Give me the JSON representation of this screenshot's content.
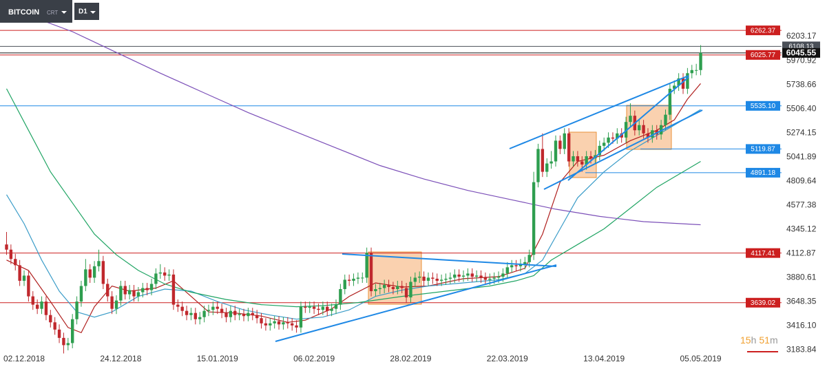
{
  "chart_data": {
    "type": "candlestick",
    "instrument": "BITCOIN",
    "instrument_kind": "CRT",
    "timeframe": "D1",
    "countdown": [
      "15",
      "h",
      "51",
      "m"
    ],
    "up_color": "#2e9e4f",
    "down_color": "#c0282d",
    "ylim": [
      3160,
      6555
    ],
    "yticks": [
      6203.17,
      5970.92,
      5738.66,
      {
        "value": 5506.4,
        "label": "5506.40"
      },
      5274.15,
      5041.89,
      4809.64,
      4577.38,
      4345.12,
      4112.87,
      3880.61,
      3648.35,
      {
        "value": 3416.1,
        "label": "3416.10"
      },
      3183.84
    ],
    "categories": [
      null,
      null,
      null,
      null,
      "02.12.2018",
      null,
      null,
      null,
      null,
      null,
      null,
      null,
      null,
      null,
      null,
      null,
      null,
      null,
      null,
      null,
      null,
      null,
      null,
      null,
      null,
      null,
      "24.12.2018",
      null,
      null,
      null,
      null,
      null,
      null,
      null,
      null,
      null,
      null,
      null,
      null,
      null,
      null,
      null,
      null,
      null,
      null,
      null,
      null,
      null,
      "15.01.2019",
      null,
      null,
      null,
      null,
      null,
      null,
      null,
      null,
      null,
      null,
      null,
      null,
      null,
      null,
      null,
      null,
      null,
      null,
      null,
      null,
      null,
      "06.02.2019",
      null,
      null,
      null,
      null,
      null,
      null,
      null,
      null,
      null,
      null,
      null,
      null,
      null,
      null,
      null,
      null,
      null,
      null,
      null,
      null,
      null,
      "28.02.2019",
      null,
      null,
      null,
      null,
      null,
      null,
      null,
      null,
      null,
      null,
      null,
      null,
      null,
      null,
      null,
      null,
      null,
      null,
      null,
      null,
      null,
      "22.03.2019",
      null,
      null,
      null,
      null,
      null,
      null,
      null,
      null,
      null,
      null,
      null,
      null,
      null,
      null,
      null,
      null,
      null,
      null,
      null,
      null,
      null,
      "13.04.2019",
      null,
      null,
      null,
      null,
      null,
      null,
      null,
      null,
      null,
      null,
      null,
      null,
      null,
      null,
      null,
      null,
      null,
      null,
      null,
      null,
      null,
      "05.05.2019"
    ],
    "candles": [
      [
        4200,
        4320,
        4100,
        4150
      ],
      [
        4150,
        4200,
        4010,
        4060
      ],
      [
        4060,
        4110,
        3950,
        4000
      ],
      [
        4000,
        4050,
        3800,
        3850
      ],
      [
        3850,
        3950,
        3800,
        3900
      ],
      [
        3900,
        3950,
        3650,
        3700
      ],
      [
        3700,
        3750,
        3570,
        3620
      ],
      [
        3620,
        3670,
        3530,
        3580
      ],
      [
        3580,
        3700,
        3530,
        3650
      ],
      [
        3650,
        3700,
        3470,
        3520
      ],
      [
        3520,
        3570,
        3400,
        3450
      ],
      [
        3450,
        3500,
        3330,
        3380
      ],
      [
        3380,
        3430,
        3250,
        3300
      ],
      [
        3300,
        3350,
        3150,
        3230
      ],
      [
        3230,
        3300,
        3180,
        3250
      ],
      [
        3250,
        3530,
        3200,
        3480
      ],
      [
        3480,
        3700,
        3430,
        3650
      ],
      [
        3650,
        3850,
        3600,
        3800
      ],
      [
        3800,
        4060,
        3750,
        3960
      ],
      [
        3960,
        4010,
        3830,
        3880
      ],
      [
        3880,
        4040,
        3830,
        3990
      ],
      [
        3990,
        4150,
        3940,
        4040
      ],
      [
        4040,
        4090,
        3770,
        3820
      ],
      [
        3820,
        3870,
        3650,
        3700
      ],
      [
        3700,
        3750,
        3530,
        3580
      ],
      [
        3580,
        3710,
        3530,
        3660
      ],
      [
        3660,
        3850,
        3610,
        3800
      ],
      [
        3800,
        3850,
        3670,
        3720
      ],
      [
        3720,
        3810,
        3670,
        3760
      ],
      [
        3760,
        3810,
        3650,
        3700
      ],
      [
        3700,
        3790,
        3650,
        3740
      ],
      [
        3740,
        3830,
        3690,
        3780
      ],
      [
        3780,
        3830,
        3710,
        3760
      ],
      [
        3760,
        3870,
        3710,
        3820
      ],
      [
        3820,
        3970,
        3770,
        3920
      ],
      [
        3920,
        4010,
        3870,
        3930
      ],
      [
        3930,
        3980,
        3850,
        3900
      ],
      [
        3900,
        3960,
        3850,
        3910
      ],
      [
        3910,
        3960,
        3570,
        3620
      ],
      [
        3620,
        3670,
        3550,
        3600
      ],
      [
        3600,
        3650,
        3510,
        3560
      ],
      [
        3560,
        3610,
        3470,
        3520
      ],
      [
        3520,
        3590,
        3470,
        3540
      ],
      [
        3540,
        3590,
        3430,
        3480
      ],
      [
        3480,
        3550,
        3430,
        3500
      ],
      [
        3500,
        3610,
        3450,
        3560
      ],
      [
        3560,
        3620,
        3510,
        3570
      ],
      [
        3570,
        3650,
        3520,
        3600
      ],
      [
        3600,
        3650,
        3530,
        3580
      ],
      [
        3580,
        3630,
        3490,
        3540
      ],
      [
        3540,
        3590,
        3450,
        3500
      ],
      [
        3500,
        3610,
        3450,
        3560
      ],
      [
        3560,
        3610,
        3470,
        3520
      ],
      [
        3520,
        3580,
        3470,
        3530
      ],
      [
        3530,
        3580,
        3460,
        3510
      ],
      [
        3510,
        3590,
        3460,
        3540
      ],
      [
        3540,
        3590,
        3470,
        3520
      ],
      [
        3520,
        3570,
        3440,
        3490
      ],
      [
        3490,
        3540,
        3390,
        3440
      ],
      [
        3440,
        3490,
        3370,
        3420
      ],
      [
        3420,
        3490,
        3370,
        3440
      ],
      [
        3440,
        3510,
        3390,
        3460
      ],
      [
        3460,
        3510,
        3380,
        3430
      ],
      [
        3430,
        3500,
        3380,
        3450
      ],
      [
        3450,
        3500,
        3390,
        3440
      ],
      [
        3440,
        3490,
        3370,
        3420
      ],
      [
        3420,
        3470,
        3350,
        3400
      ],
      [
        3400,
        3650,
        3350,
        3600
      ],
      [
        3600,
        3650,
        3540,
        3590
      ],
      [
        3590,
        3650,
        3540,
        3600
      ],
      [
        3600,
        3650,
        3530,
        3580
      ],
      [
        3580,
        3630,
        3520,
        3570
      ],
      [
        3570,
        3650,
        3520,
        3600
      ],
      [
        3600,
        3650,
        3510,
        3560
      ],
      [
        3560,
        3630,
        3510,
        3580
      ],
      [
        3580,
        3670,
        3530,
        3620
      ],
      [
        3620,
        3820,
        3570,
        3770
      ],
      [
        3770,
        3910,
        3720,
        3860
      ],
      [
        3860,
        3910,
        3800,
        3850
      ],
      [
        3850,
        3920,
        3800,
        3870
      ],
      [
        3870,
        3930,
        3820,
        3880
      ],
      [
        3880,
        3930,
        3830,
        3880
      ],
      [
        3880,
        4170,
        3830,
        4120
      ],
      [
        4120,
        4170,
        3700,
        3750
      ],
      [
        3750,
        3820,
        3700,
        3770
      ],
      [
        3770,
        3830,
        3720,
        3780
      ],
      [
        3780,
        3860,
        3730,
        3810
      ],
      [
        3810,
        3860,
        3740,
        3790
      ],
      [
        3790,
        3840,
        3720,
        3770
      ],
      [
        3770,
        3850,
        3720,
        3800
      ],
      [
        3800,
        3850,
        3730,
        3780
      ],
      [
        3780,
        3830,
        3640,
        3690
      ],
      [
        3690,
        3890,
        3640,
        3840
      ],
      [
        3840,
        3930,
        3790,
        3880
      ],
      [
        3880,
        3940,
        3830,
        3890
      ],
      [
        3890,
        3940,
        3800,
        3850
      ],
      [
        3850,
        3930,
        3800,
        3880
      ],
      [
        3880,
        3930,
        3820,
        3870
      ],
      [
        3870,
        3920,
        3800,
        3850
      ],
      [
        3850,
        3910,
        3800,
        3860
      ],
      [
        3860,
        3920,
        3810,
        3870
      ],
      [
        3870,
        3930,
        3820,
        3880
      ],
      [
        3880,
        3960,
        3830,
        3910
      ],
      [
        3910,
        3960,
        3840,
        3890
      ],
      [
        3890,
        3950,
        3840,
        3900
      ],
      [
        3900,
        3970,
        3850,
        3920
      ],
      [
        3920,
        3970,
        3840,
        3890
      ],
      [
        3890,
        3950,
        3840,
        3900
      ],
      [
        3900,
        3950,
        3830,
        3880
      ],
      [
        3880,
        3930,
        3810,
        3860
      ],
      [
        3860,
        3920,
        3810,
        3870
      ],
      [
        3870,
        3930,
        3820,
        3880
      ],
      [
        3880,
        3940,
        3830,
        3890
      ],
      [
        3890,
        3970,
        3840,
        3920
      ],
      [
        3920,
        4030,
        3870,
        3980
      ],
      [
        3980,
        4050,
        3930,
        4000
      ],
      [
        4000,
        4050,
        3940,
        3990
      ],
      [
        3990,
        4060,
        3940,
        4010
      ],
      [
        4010,
        4080,
        3960,
        4030
      ],
      [
        4030,
        4150,
        3980,
        4100
      ],
      [
        4100,
        4900,
        4050,
        4800
      ],
      [
        4800,
        5170,
        4750,
        5120
      ],
      [
        5120,
        5270,
        4850,
        4900
      ],
      [
        4900,
        5030,
        4850,
        4980
      ],
      [
        4980,
        5100,
        4930,
        5000
      ],
      [
        5000,
        5250,
        4950,
        5200
      ],
      [
        5200,
        5250,
        5070,
        5120
      ],
      [
        5120,
        5320,
        5070,
        5270
      ],
      [
        5270,
        5320,
        4950,
        5000
      ],
      [
        5000,
        5100,
        4950,
        5050
      ],
      [
        5050,
        5100,
        4950,
        5000
      ],
      [
        5000,
        5050,
        4900,
        4970
      ],
      [
        4970,
        5100,
        4920,
        5050
      ],
      [
        5050,
        5100,
        4980,
        5030
      ],
      [
        5030,
        5110,
        4980,
        5060
      ],
      [
        5060,
        5200,
        5010,
        5150
      ],
      [
        5150,
        5230,
        5100,
        5180
      ],
      [
        5180,
        5280,
        5130,
        5230
      ],
      [
        5230,
        5280,
        5170,
        5220
      ],
      [
        5220,
        5320,
        5170,
        5270
      ],
      [
        5270,
        5320,
        5180,
        5230
      ],
      [
        5230,
        5430,
        5180,
        5380
      ],
      [
        5380,
        5560,
        5330,
        5440
      ],
      [
        5440,
        5490,
        5250,
        5300
      ],
      [
        5300,
        5400,
        5250,
        5350
      ],
      [
        5350,
        5400,
        5220,
        5270
      ],
      [
        5270,
        5320,
        5180,
        5230
      ],
      [
        5230,
        5350,
        5180,
        5300
      ],
      [
        5300,
        5350,
        5210,
        5260
      ],
      [
        5260,
        5400,
        5210,
        5350
      ],
      [
        5350,
        5500,
        5300,
        5450
      ],
      [
        5450,
        5750,
        5400,
        5700
      ],
      [
        5700,
        5780,
        5650,
        5730
      ],
      [
        5730,
        5850,
        5680,
        5800
      ],
      [
        5800,
        5850,
        5650,
        5700
      ],
      [
        5700,
        5900,
        5650,
        5850
      ],
      [
        5850,
        5930,
        5800,
        5880
      ],
      [
        5880,
        5940,
        5830,
        5880
      ],
      [
        5880,
        6120,
        5830,
        6045.55
      ]
    ],
    "lines": [
      {
        "color": "#b0201f",
        "x": [
          0,
          5,
          10,
          14,
          17,
          20,
          24,
          28,
          34,
          38,
          42,
          46,
          52,
          58,
          64,
          68,
          74,
          78,
          84,
          90,
          96,
          104,
          112,
          118,
          122,
          126,
          130,
          136,
          142,
          148,
          152,
          155,
          158
        ],
        "values": [
          4050,
          3950,
          3650,
          3400,
          3350,
          3600,
          3800,
          3750,
          3780,
          3850,
          3700,
          3550,
          3540,
          3510,
          3450,
          3470,
          3580,
          3700,
          3830,
          3790,
          3800,
          3870,
          3890,
          3970,
          4300,
          4800,
          5000,
          5060,
          5200,
          5300,
          5400,
          5600,
          5750
        ]
      },
      {
        "color": "#3a9cc8",
        "x": [
          0,
          4,
          8,
          12,
          16,
          20,
          24,
          30,
          36,
          42,
          48,
          54,
          60,
          66,
          72,
          78,
          84,
          90,
          96,
          104,
          112,
          118,
          122,
          126,
          130,
          136,
          142,
          148,
          152,
          158
        ],
        "values": [
          4680,
          4400,
          4050,
          3750,
          3550,
          3500,
          3550,
          3700,
          3770,
          3750,
          3650,
          3570,
          3520,
          3480,
          3500,
          3570,
          3700,
          3760,
          3800,
          3830,
          3860,
          3920,
          4050,
          4350,
          4650,
          4900,
          5100,
          5250,
          5350,
          5500
        ]
      },
      {
        "color": "#1fa463",
        "x": [
          0,
          5,
          10,
          15,
          20,
          25,
          30,
          36,
          42,
          50,
          58,
          66,
          72,
          80,
          90,
          100,
          110,
          116,
          120,
          124,
          130,
          136,
          142,
          148,
          154,
          158
        ],
        "values": [
          5700,
          5300,
          4900,
          4600,
          4300,
          4100,
          3950,
          3820,
          3740,
          3670,
          3620,
          3600,
          3610,
          3640,
          3700,
          3750,
          3800,
          3850,
          3900,
          4050,
          4200,
          4350,
          4550,
          4750,
          4900,
          5000
        ]
      },
      {
        "color": "#7b4fb8",
        "x": [
          8,
          15,
          25,
          35,
          45,
          55,
          65,
          75,
          85,
          95,
          105,
          115,
          125,
          135,
          145,
          158
        ],
        "values": [
          6360,
          6250,
          6050,
          5850,
          5660,
          5470,
          5300,
          5130,
          4960,
          4830,
          4720,
          4630,
          4540,
          4470,
          4420,
          4390
        ]
      }
    ],
    "levels": [
      {
        "value": 6262.37,
        "color": "#cc1f1f"
      },
      {
        "value": 6108.13,
        "color": "#4a4f57"
      },
      {
        "value": 6045.55,
        "color": "#111111"
      },
      {
        "value": 6025.77,
        "color": "#cc1f1f"
      },
      {
        "value": 5535.1,
        "label": "5535.10",
        "color": "#1e88e5"
      },
      {
        "value": 5119.87,
        "color": "#1e88e5"
      },
      {
        "value": 4891.18,
        "color": "#1e88e5"
      },
      {
        "value": 4117.41,
        "color": "#cc1f1f"
      },
      {
        "value": 3639.02,
        "color": "#cc1f1f"
      }
    ]
  }
}
